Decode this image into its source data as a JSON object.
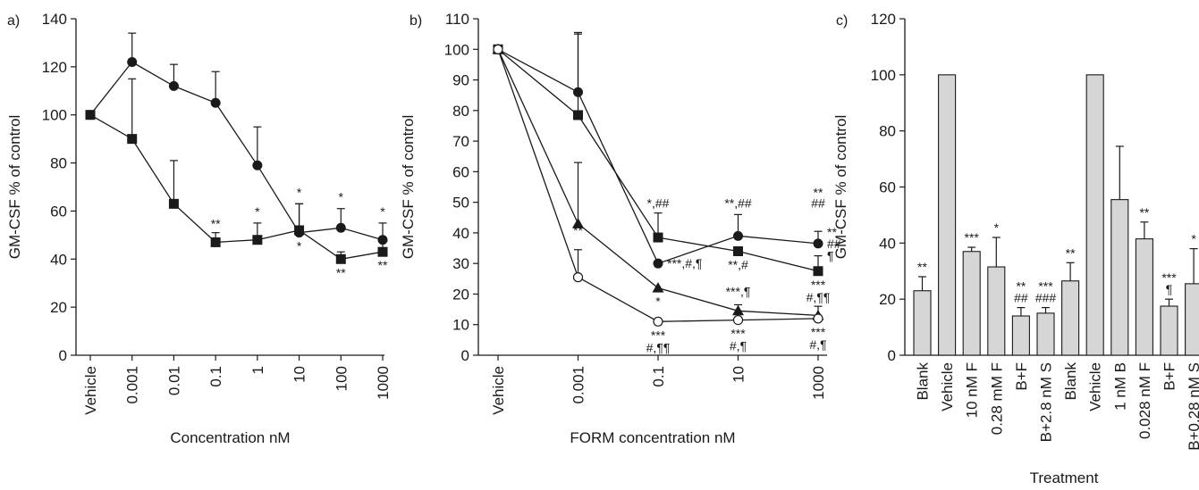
{
  "colors": {
    "ink": "#1a1a1a",
    "bar_fill": "#d6d6d6",
    "open_marker": "#ffffff"
  },
  "chart_data": [
    {
      "panel": "a)",
      "type": "line",
      "ylabel": "GM-CSF % of control",
      "xlabel": "Concentration nM",
      "categories": [
        "Vehicle",
        "0.001",
        "0.01",
        "0.1",
        "1",
        "10",
        "100",
        "1000"
      ],
      "ylim": [
        0,
        140
      ],
      "yticks": [
        "0",
        "20",
        "40",
        "60",
        "80",
        "100",
        "120",
        "140"
      ],
      "series": [
        {
          "marker": "circle",
          "values": [
            100,
            122,
            112,
            105,
            79,
            51,
            53,
            48
          ],
          "err": [
            0,
            12,
            9,
            13,
            16,
            12,
            8,
            7
          ]
        },
        {
          "marker": "square",
          "values": [
            100,
            90,
            63,
            47,
            48,
            52,
            40,
            43
          ],
          "err": [
            0,
            25,
            18,
            4,
            7,
            11,
            3,
            4
          ]
        }
      ],
      "annotations": [
        {
          "cat": 3,
          "y": 50,
          "text": "**",
          "pos": "above"
        },
        {
          "cat": 4,
          "y": 55,
          "text": "*",
          "pos": "above"
        },
        {
          "cat": 5,
          "y": 63,
          "text": "*",
          "pos": "above"
        },
        {
          "cat": 5,
          "y": 51,
          "text": "*",
          "pos": "below"
        },
        {
          "cat": 6,
          "y": 61,
          "text": "*",
          "pos": "above"
        },
        {
          "cat": 6,
          "y": 40,
          "text": "**",
          "pos": "below"
        },
        {
          "cat": 7,
          "y": 55,
          "text": "*",
          "pos": "above"
        },
        {
          "cat": 7,
          "y": 43,
          "text": "**",
          "pos": "below"
        }
      ]
    },
    {
      "panel": "b)",
      "type": "line",
      "ylabel": "GM-CSF % of control",
      "xlabel": "FORM concentration nM",
      "categories": [
        "Vehicle",
        "0.001",
        "0.1",
        "10",
        "1000"
      ],
      "ylim": [
        0,
        110
      ],
      "yticks": [
        "0",
        "10",
        "20",
        "30",
        "40",
        "50",
        "60",
        "70",
        "80",
        "90",
        "100",
        "110"
      ],
      "series": [
        {
          "marker": "circle",
          "values": [
            100,
            86,
            30,
            39,
            36.5
          ],
          "err": [
            0,
            19,
            0,
            7,
            4
          ]
        },
        {
          "marker": "square",
          "values": [
            100,
            78.5,
            38.5,
            34,
            27.5
          ],
          "err": [
            0,
            27,
            8,
            0,
            5
          ]
        },
        {
          "marker": "triangle",
          "values": [
            100,
            43,
            22,
            14.5,
            13
          ],
          "err": [
            0,
            20,
            0,
            2,
            3
          ]
        },
        {
          "marker": "open-circle",
          "values": [
            100,
            25.5,
            11,
            11.5,
            12
          ],
          "err": [
            0,
            9,
            0,
            0,
            0
          ]
        }
      ],
      "annotations": [
        {
          "cat": 1,
          "y": 37,
          "text": "**",
          "pos": "above"
        },
        {
          "cat": 2,
          "y": 46,
          "text": "*,##",
          "pos": "above"
        },
        {
          "cat": 2,
          "y": 30,
          "text": "***,#,¶",
          "pos": "right"
        },
        {
          "cat": 2,
          "y": 22,
          "text": "*",
          "pos": "below"
        },
        {
          "cat": 2,
          "y": 11,
          "text": "***",
          "pos": "below"
        },
        {
          "cat": 2,
          "y": 11,
          "text": "#,¶¶",
          "pos": "below2"
        },
        {
          "cat": 3,
          "y": 46,
          "text": "**,##",
          "pos": "above"
        },
        {
          "cat": 3,
          "y": 34,
          "text": "**,#",
          "pos": "below"
        },
        {
          "cat": 3,
          "y": 17,
          "text": "***,¶",
          "pos": "above"
        },
        {
          "cat": 3,
          "y": 11.5,
          "text": "***",
          "pos": "below"
        },
        {
          "cat": 3,
          "y": 11.5,
          "text": "#,¶",
          "pos": "below2"
        },
        {
          "cat": 4,
          "y": 46,
          "text": "##",
          "pos": "above"
        },
        {
          "cat": 4,
          "y": 49.5,
          "text": "**",
          "pos": "above"
        },
        {
          "cat": 4,
          "y": 36.5,
          "text": "**",
          "pos": "right-up"
        },
        {
          "cat": 4,
          "y": 36.5,
          "text": "##",
          "pos": "right"
        },
        {
          "cat": 4,
          "y": 32.5,
          "text": "¶",
          "pos": "right"
        },
        {
          "cat": 4,
          "y": 27.5,
          "text": "***",
          "pos": "below"
        },
        {
          "cat": 4,
          "y": 27.5,
          "text": "#,¶¶",
          "pos": "below2"
        },
        {
          "cat": 4,
          "y": 12,
          "text": "***",
          "pos": "below"
        },
        {
          "cat": 4,
          "y": 12,
          "text": "#,¶",
          "pos": "below2"
        }
      ]
    },
    {
      "panel": "c)",
      "type": "bar",
      "ylabel": "GM-CSF % of control",
      "xlabel": "Treatment",
      "categories": [
        "Blank",
        "Vehicle",
        "10 nM F",
        "0.28 mM F",
        "B+F",
        "B+2.8 nM S",
        "Blank",
        "Vehicle",
        "1 nM B",
        "0.028 nM F",
        "B+F",
        "B+0.28 nM S"
      ],
      "values": [
        23,
        100,
        37,
        31.5,
        14,
        15,
        26.5,
        100,
        55.5,
        41.5,
        17.5,
        25.5
      ],
      "err": [
        5,
        0,
        1.5,
        10.5,
        3,
        2,
        6.5,
        0,
        19,
        6,
        2.5,
        12.5
      ],
      "ylim": [
        0,
        120
      ],
      "yticks": [
        "0",
        "20",
        "40",
        "60",
        "80",
        "100",
        "120"
      ],
      "labels": [
        [
          "**"
        ],
        [],
        [
          "***"
        ],
        [
          "*"
        ],
        [
          "**",
          "##"
        ],
        [
          "***",
          "###"
        ],
        [
          "**"
        ],
        [],
        [],
        [
          "**"
        ],
        [
          "***",
          "¶"
        ],
        [
          "*"
        ]
      ]
    }
  ]
}
